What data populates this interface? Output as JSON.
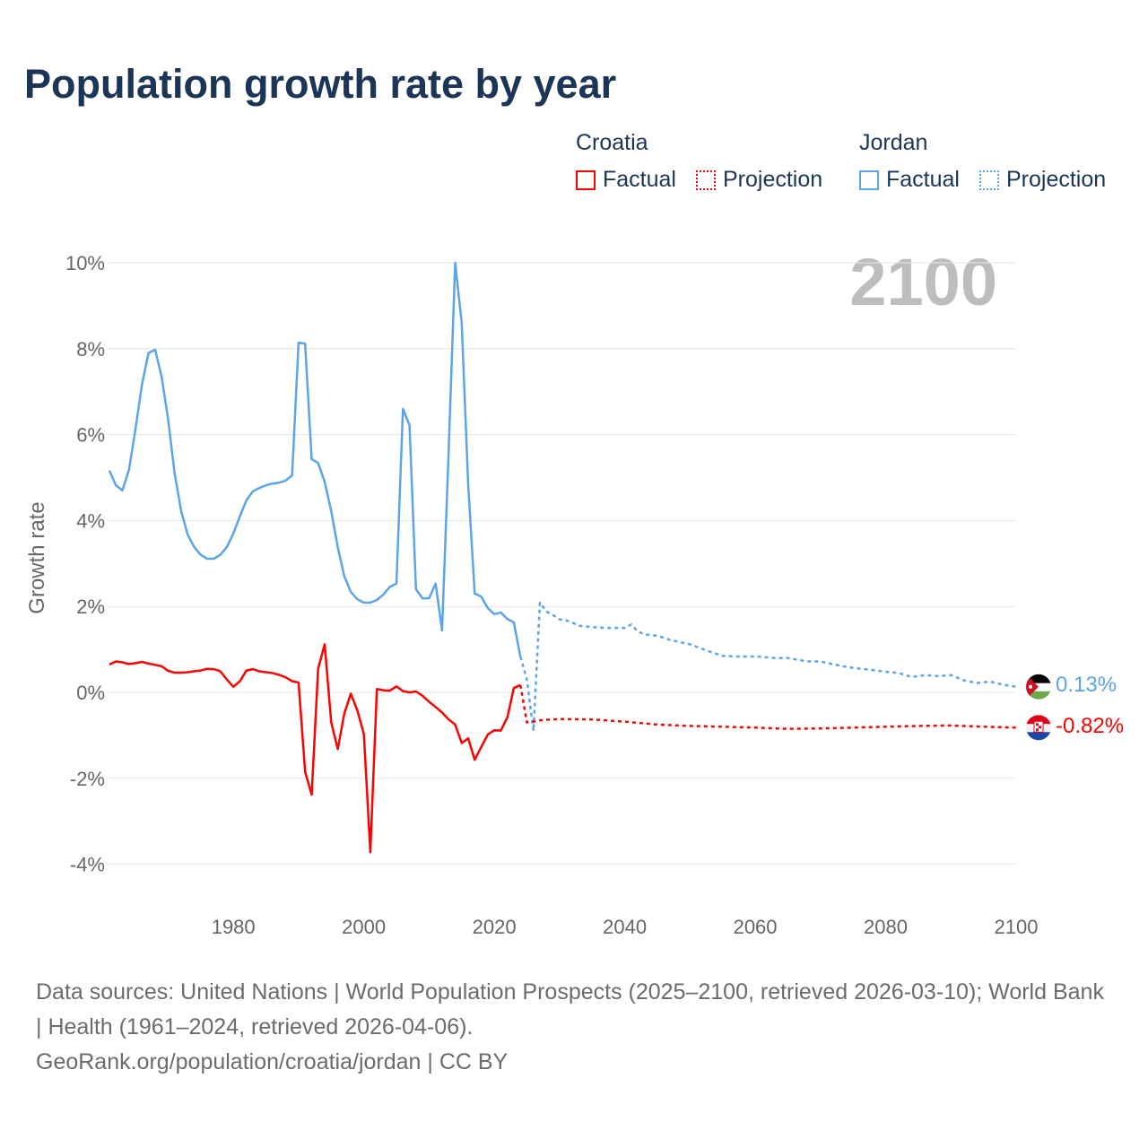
{
  "title": "Population growth rate by year",
  "legend": {
    "groups": [
      {
        "name": "Croatia",
        "factual": "Factual",
        "projection": "Projection",
        "color": "#ff0000"
      },
      {
        "name": "Jordan",
        "factual": "Factual",
        "projection": "Projection",
        "color": "#5ba4e8"
      }
    ]
  },
  "current_year": "2100",
  "end_labels": {
    "jordan": "0.13%",
    "croatia": "-0.82%"
  },
  "footer": {
    "sources": "Data sources: United Nations | World Population Prospects (2025–2100, retrieved 2026-03-10); World Bank | Health (1961–2024, retrieved 2026-04-06).",
    "credit": "GeoRank.org/population/croatia/jordan | CC BY"
  },
  "chart_data": {
    "type": "line",
    "title": "Population growth rate by year",
    "xlabel": "",
    "ylabel": "Growth rate",
    "xlim": [
      1961,
      2100
    ],
    "ylim": [
      -5,
      10.5
    ],
    "x_ticks": [
      "1980",
      "2000",
      "2020",
      "2040",
      "2060",
      "2080",
      "2100"
    ],
    "y_ticks": [
      "-4%",
      "-2%",
      "0%",
      "2%",
      "4%",
      "6%",
      "8%",
      "10%"
    ],
    "grid": true,
    "legend_position": "top-right",
    "series": [
      {
        "name": "Jordan",
        "kind": "Factual",
        "color": "#5ba4e8",
        "x_start": 1961,
        "values": [
          5.16,
          4.82,
          4.7,
          5.18,
          6.14,
          7.18,
          7.9,
          7.98,
          7.35,
          6.35,
          5.1,
          4.22,
          3.67,
          3.38,
          3.2,
          3.11,
          3.11,
          3.2,
          3.38,
          3.7,
          4.1,
          4.47,
          4.68,
          4.76,
          4.82,
          4.86,
          4.88,
          4.93,
          5.05,
          8.14,
          8.12,
          5.43,
          5.34,
          4.9,
          4.22,
          3.38,
          2.71,
          2.34,
          2.17,
          2.09,
          2.09,
          2.15,
          2.28,
          2.46,
          2.53,
          6.6,
          6.22,
          2.4,
          2.19,
          2.19,
          2.53,
          1.44,
          5.6,
          10.0,
          8.6,
          4.84,
          2.3,
          2.23,
          1.96,
          1.82,
          1.86,
          1.71,
          1.63,
          0.83
        ]
      },
      {
        "name": "Jordan",
        "kind": "Projection",
        "color": "#5ba4e8",
        "x": [
          2024,
          2025,
          2026,
          2027,
          2028,
          2029,
          2030,
          2031,
          2032,
          2033,
          2035,
          2037,
          2040,
          2041,
          2042,
          2043,
          2045,
          2047,
          2050,
          2053,
          2055,
          2058,
          2060,
          2063,
          2065,
          2068,
          2070,
          2073,
          2075,
          2078,
          2080,
          2082,
          2084,
          2086,
          2088,
          2090,
          2092,
          2094,
          2096,
          2098,
          2100
        ],
        "values": [
          0.83,
          0.3,
          -0.9,
          2.09,
          1.88,
          1.8,
          1.7,
          1.68,
          1.62,
          1.55,
          1.52,
          1.5,
          1.5,
          1.58,
          1.42,
          1.35,
          1.32,
          1.22,
          1.12,
          0.95,
          0.85,
          0.83,
          0.84,
          0.8,
          0.8,
          0.72,
          0.72,
          0.62,
          0.57,
          0.52,
          0.48,
          0.45,
          0.36,
          0.4,
          0.38,
          0.4,
          0.28,
          0.22,
          0.25,
          0.18,
          0.13
        ]
      },
      {
        "name": "Croatia",
        "kind": "Factual",
        "color": "#ff0000",
        "x_start": 1961,
        "values": [
          0.65,
          0.72,
          0.7,
          0.66,
          0.68,
          0.71,
          0.67,
          0.64,
          0.61,
          0.5,
          0.46,
          0.46,
          0.47,
          0.49,
          0.51,
          0.55,
          0.54,
          0.49,
          0.3,
          0.13,
          0.26,
          0.51,
          0.54,
          0.49,
          0.47,
          0.45,
          0.41,
          0.35,
          0.26,
          0.23,
          -1.85,
          -2.38,
          0.55,
          1.12,
          -0.7,
          -1.32,
          -0.5,
          -0.03,
          -0.42,
          -0.97,
          -3.72,
          0.08,
          0.05,
          0.04,
          0.14,
          0.03,
          0.0,
          0.02,
          -0.08,
          -0.22,
          -0.34,
          -0.47,
          -0.63,
          -0.75,
          -1.18,
          -1.07,
          -1.57,
          -1.27,
          -0.98,
          -0.88,
          -0.89,
          -0.58,
          0.1,
          0.17
        ]
      },
      {
        "name": "Croatia",
        "kind": "Projection",
        "color": "#ff0000",
        "x": [
          2024,
          2025,
          2026,
          2027,
          2030,
          2035,
          2040,
          2045,
          2050,
          2055,
          2060,
          2065,
          2070,
          2075,
          2080,
          2085,
          2090,
          2095,
          2100
        ],
        "values": [
          0.17,
          -0.7,
          -0.68,
          -0.65,
          -0.62,
          -0.63,
          -0.68,
          -0.75,
          -0.78,
          -0.8,
          -0.82,
          -0.85,
          -0.84,
          -0.82,
          -0.8,
          -0.78,
          -0.77,
          -0.8,
          -0.82
        ]
      }
    ]
  }
}
